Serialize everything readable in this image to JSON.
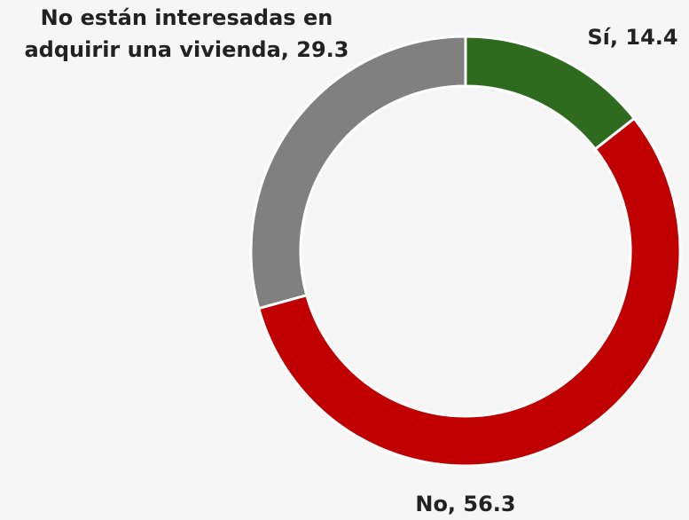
{
  "chart_data": {
    "type": "donut",
    "values": [
      14.4,
      56.3,
      29.3
    ],
    "value_labels": [
      "Sí, 14.4",
      "No, 56.3",
      "No están interesadas en adquirir una vivienda, 29.3"
    ],
    "colors": [
      "#2e6b1e",
      "#c00000",
      "#808080"
    ]
  }
}
